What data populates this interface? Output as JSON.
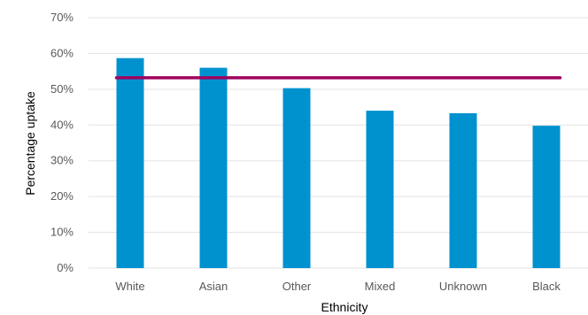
{
  "chart_data": {
    "type": "bar",
    "title": "",
    "xlabel": "Ethnicity",
    "ylabel": "Percentage uptake",
    "categories": [
      "White",
      "Asian",
      "Other",
      "Mixed",
      "Unknown",
      "Black"
    ],
    "values": [
      58.7,
      56.0,
      50.3,
      44.0,
      43.3,
      39.8
    ],
    "reference_line": {
      "value": 53.2
    },
    "ylim": [
      0,
      70
    ],
    "yticks": [
      0,
      10,
      20,
      30,
      40,
      50,
      60,
      70
    ],
    "ytick_labels": [
      "0%",
      "10%",
      "20%",
      "30%",
      "40%",
      "50%",
      "60%",
      "70%"
    ],
    "grid": true,
    "legend": "none",
    "colors": {
      "bar": "#0091cf",
      "line": "#a0005e",
      "grid": "#e3e3e3"
    }
  }
}
